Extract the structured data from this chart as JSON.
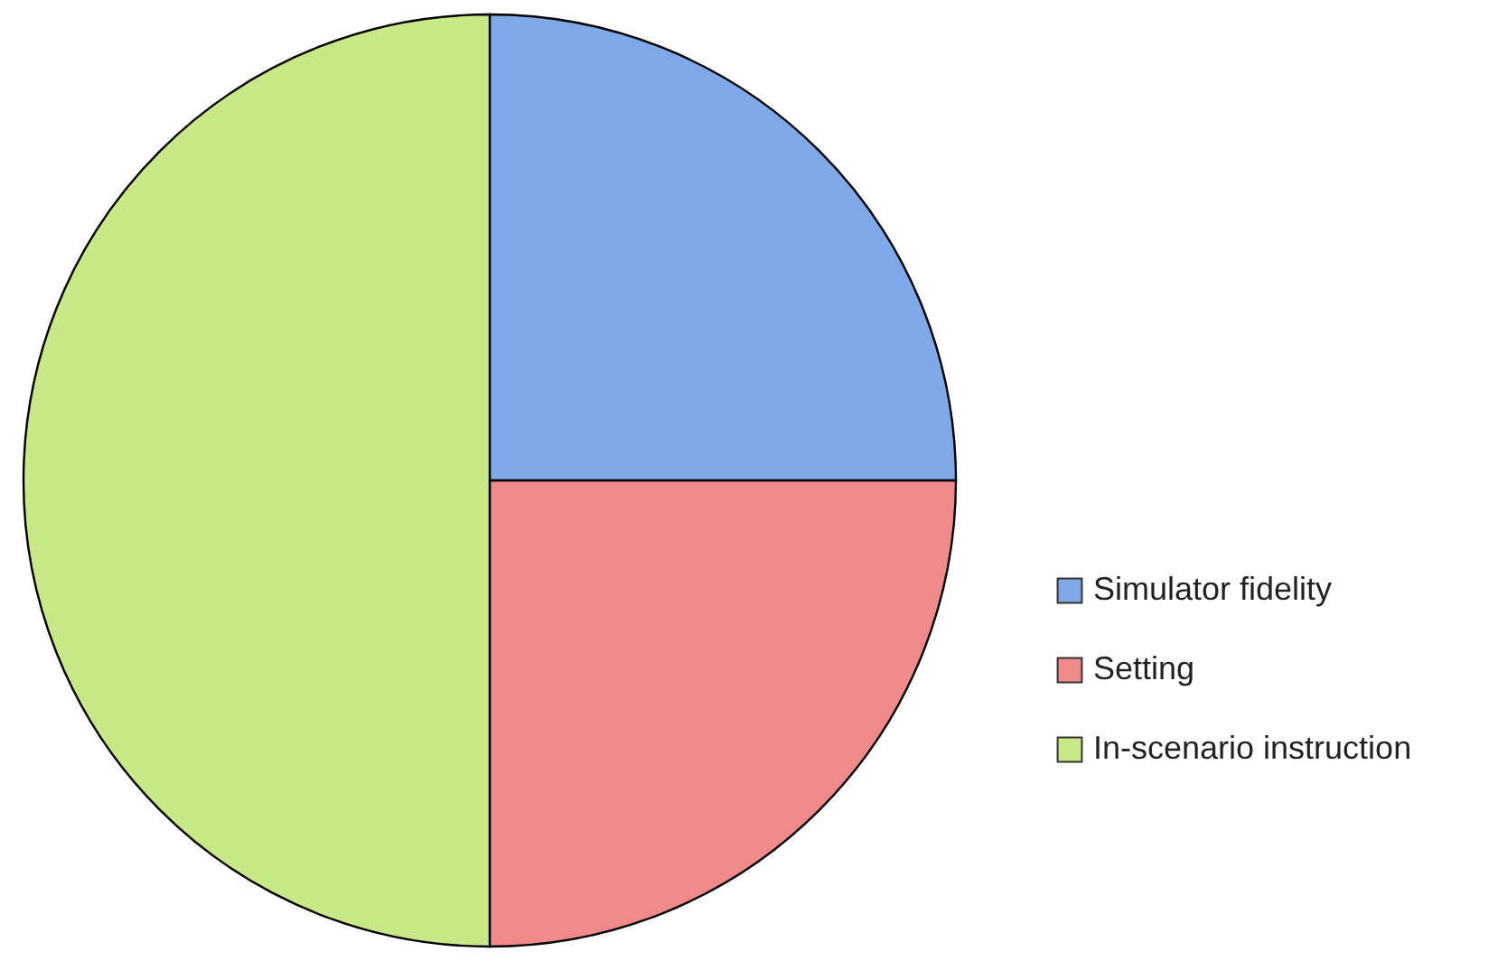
{
  "chart_data": {
    "type": "pie",
    "categories": [
      "Simulator fidelity",
      "Setting",
      "In-scenario instruction"
    ],
    "values": [
      25,
      25,
      50
    ],
    "colors": [
      "#7fa9e6",
      "#f08a8a",
      "#c8e888"
    ],
    "legend": "right"
  }
}
